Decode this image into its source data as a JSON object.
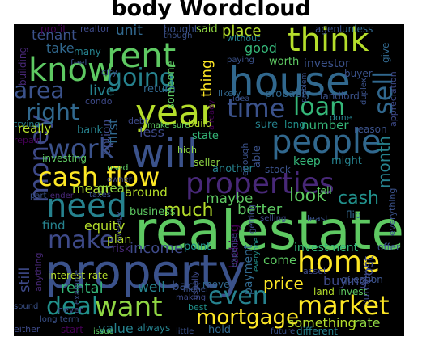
{
  "title": "body Wordcloud",
  "palette": {
    "background": "#000000",
    "viridis": [
      "#440154",
      "#3b528b",
      "#21918c",
      "#5ec962",
      "#fde725"
    ]
  },
  "words": [
    {
      "text": "realestate",
      "color": "#5ec962"
    },
    {
      "text": "property",
      "color": "#3b528b"
    },
    {
      "text": "house",
      "color": "#31688e"
    },
    {
      "text": "will",
      "color": "#3b528b"
    },
    {
      "text": "year",
      "color": "#b5de2b"
    },
    {
      "text": "people",
      "color": "#31688e"
    },
    {
      "text": "rent",
      "color": "#5ec962"
    },
    {
      "text": "think",
      "color": "#b5de2b"
    },
    {
      "text": "know",
      "color": "#5ec962"
    },
    {
      "text": "need",
      "color": "#26828e"
    },
    {
      "text": "money",
      "color": "#3e4a89"
    },
    {
      "text": "properties",
      "color": "#482878"
    },
    {
      "text": "cash flow",
      "color": "#fde725"
    },
    {
      "text": "home",
      "color": "#fde725"
    },
    {
      "text": "market",
      "color": "#fde725"
    },
    {
      "text": "want",
      "color": "#90d743"
    },
    {
      "text": "work",
      "color": "#3b528b"
    },
    {
      "text": "time",
      "color": "#3b528b"
    },
    {
      "text": "loan",
      "color": "#35b779"
    },
    {
      "text": "sell",
      "color": "#31688e"
    },
    {
      "text": "going",
      "color": "#26828e"
    },
    {
      "text": "area",
      "color": "#3b528b"
    },
    {
      "text": "right",
      "color": "#31688e"
    },
    {
      "text": "make",
      "color": "#3e4a89"
    },
    {
      "text": "deal",
      "color": "#21918c"
    },
    {
      "text": "even",
      "color": "#26828e"
    },
    {
      "text": "mortgage",
      "color": "#fde725"
    },
    {
      "text": "look",
      "color": "#5ec962"
    },
    {
      "text": "cash",
      "color": "#21918c"
    },
    {
      "text": "tenant",
      "color": "#3b528b"
    },
    {
      "text": "take",
      "color": "#31688e"
    },
    {
      "text": "unit",
      "color": "#31688e"
    },
    {
      "text": "good",
      "color": "#35b779"
    },
    {
      "text": "place",
      "color": "#b5de2b"
    },
    {
      "text": "said",
      "color": "#90d743"
    },
    {
      "text": "bought",
      "color": "#3b528b"
    },
    {
      "text": "investor",
      "color": "#3b528b"
    },
    {
      "text": "thing",
      "color": "#fde725"
    },
    {
      "text": "live",
      "color": "#26828e"
    },
    {
      "text": "much",
      "color": "#b5de2b"
    },
    {
      "text": "rental",
      "color": "#35b779"
    },
    {
      "text": "well",
      "color": "#26828e"
    },
    {
      "text": "still",
      "color": "#3e4a89"
    },
    {
      "text": "back",
      "color": "#3b528b"
    },
    {
      "text": "price",
      "color": "#fde725"
    },
    {
      "text": "payment",
      "color": "#31688e"
    },
    {
      "text": "buying",
      "color": "#3e4a89"
    },
    {
      "text": "investment",
      "color": "#35b779"
    },
    {
      "text": "something",
      "color": "#b5de2b"
    },
    {
      "text": "rate",
      "color": "#90d743"
    },
    {
      "text": "value",
      "color": "#26828e"
    },
    {
      "text": "month",
      "color": "#26828e"
    },
    {
      "text": "cost",
      "color": "#3e4a89"
    },
    {
      "text": "income",
      "color": "#3e4a89"
    },
    {
      "text": "better",
      "color": "#5ec962"
    },
    {
      "text": "maybe",
      "color": "#5ec962"
    },
    {
      "text": "around",
      "color": "#b5de2b"
    },
    {
      "text": "business",
      "color": "#5ec962"
    },
    {
      "text": "equity",
      "color": "#b5de2b"
    },
    {
      "text": "find",
      "color": "#26828e"
    },
    {
      "text": "mean",
      "color": "#b5de2b"
    },
    {
      "text": "great",
      "color": "#90d743"
    },
    {
      "text": "really",
      "color": "#b5de2b"
    },
    {
      "text": "bank",
      "color": "#26828e"
    },
    {
      "text": "less",
      "color": "#3e4a89"
    },
    {
      "text": "first",
      "color": "#31688e"
    },
    {
      "text": "probably",
      "color": "#31688e"
    },
    {
      "text": "landlord",
      "color": "#3b528b"
    },
    {
      "text": "worth",
      "color": "#5ec962"
    },
    {
      "text": "keep",
      "color": "#35b779"
    },
    {
      "text": "number",
      "color": "#35b779"
    },
    {
      "text": "sure",
      "color": "#26828e"
    },
    {
      "text": "long",
      "color": "#21918c"
    },
    {
      "text": "able",
      "color": "#3b528b"
    },
    {
      "text": "might",
      "color": "#26828e"
    },
    {
      "text": "looking",
      "color": "#440154"
    },
    {
      "text": "move",
      "color": "#31688e"
    },
    {
      "text": "plan",
      "color": "#b5de2b"
    },
    {
      "text": "risk",
      "color": "#482878"
    },
    {
      "text": "point",
      "color": "#21918c"
    },
    {
      "text": "return",
      "color": "#31688e"
    },
    {
      "text": "option",
      "color": "#3e4a89"
    },
    {
      "text": "always",
      "color": "#26828e"
    },
    {
      "text": "hold",
      "color": "#31688e"
    },
    {
      "text": "best",
      "color": "#21918c"
    },
    {
      "text": "come",
      "color": "#5ec962"
    },
    {
      "text": "selling",
      "color": "#3e4a89"
    },
    {
      "text": "interest rate",
      "color": "#b5de2b"
    },
    {
      "text": "buyer",
      "color": "#3b528b"
    },
    {
      "text": "give",
      "color": "#31688e"
    },
    {
      "text": "unless",
      "color": "#31688e"
    },
    {
      "text": "agent",
      "color": "#3b528b"
    },
    {
      "text": "profit",
      "color": "#440154"
    },
    {
      "text": "realtor",
      "color": "#3e4a89"
    },
    {
      "text": "building",
      "color": "#482878"
    },
    {
      "text": "many",
      "color": "#26828e"
    },
    {
      "text": "city",
      "color": "#3b528b"
    },
    {
      "text": "feel",
      "color": "#3b528b"
    },
    {
      "text": "someone",
      "color": "#5ec962"
    },
    {
      "text": "condo",
      "color": "#3e4a89"
    },
    {
      "text": "trying",
      "color": "#26828e"
    },
    {
      "text": "repair",
      "color": "#440154"
    },
    {
      "text": "investing",
      "color": "#5ec962"
    },
    {
      "text": "used",
      "color": "#5ec962"
    },
    {
      "text": "part",
      "color": "#3b528b"
    },
    {
      "text": "lender",
      "color": "#482878"
    },
    {
      "text": "taxes",
      "color": "#3b528b"
    },
    {
      "text": "owner",
      "color": "#3e4a89"
    },
    {
      "text": "debt",
      "color": "#3e4a89"
    },
    {
      "text": "make sure",
      "color": "#5ec962"
    },
    {
      "text": "build",
      "color": "#b5de2b"
    },
    {
      "text": "high",
      "color": "#90d743"
    },
    {
      "text": "seller",
      "color": "#90d743"
    },
    {
      "text": "another",
      "color": "#26828e"
    },
    {
      "text": "stock",
      "color": "#3b528b"
    },
    {
      "text": "tell",
      "color": "#5ec962"
    },
    {
      "text": "least",
      "color": "#3b528b"
    },
    {
      "text": "flip",
      "color": "#31688e"
    },
    {
      "text": "done",
      "color": "#26828e"
    },
    {
      "text": "reason",
      "color": "#3b528b"
    },
    {
      "text": "idea",
      "color": "#3b528b"
    },
    {
      "text": "likely",
      "color": "#31688e"
    },
    {
      "text": "paying",
      "color": "#3b528b"
    },
    {
      "text": "though",
      "color": "#3b528b"
    },
    {
      "text": "without",
      "color": "#26828e"
    },
    {
      "text": "duplex",
      "color": "#3b528b"
    },
    {
      "text": "appreciation",
      "color": "#3e4a89"
    },
    {
      "text": "either",
      "color": "#3e4a89"
    },
    {
      "text": "issue",
      "color": "#5ec962"
    },
    {
      "text": "start",
      "color": "#440154"
    },
    {
      "text": "little",
      "color": "#3b528b"
    },
    {
      "text": "future",
      "color": "#3b528b"
    },
    {
      "text": "different",
      "color": "#26828e"
    },
    {
      "text": "land",
      "color": "#b5de2b"
    },
    {
      "text": "invest",
      "color": "#5ec962"
    },
    {
      "text": "question",
      "color": "#3b528b"
    },
    {
      "text": "offer",
      "color": "#3b528b"
    },
    {
      "text": "purchase",
      "color": "#3e4a89"
    },
    {
      "text": "everything",
      "color": "#3b528b"
    },
    {
      "text": "asset",
      "color": "#3e4a89"
    },
    {
      "text": "making",
      "color": "#3e4a89"
    },
    {
      "text": "higher",
      "color": "#3b528b"
    },
    {
      "text": "usually",
      "color": "#3e4a89"
    },
    {
      "text": "expense",
      "color": "#3e4a89"
    },
    {
      "text": "anything",
      "color": "#482878"
    },
    {
      "text": "example",
      "color": "#3b528b"
    },
    {
      "text": "never",
      "color": "#3b528b"
    },
    {
      "text": "long term",
      "color": "#3b528b"
    },
    {
      "text": "leverage",
      "color": "#3e4a89"
    },
    {
      "text": "state",
      "color": "#35b779"
    },
    {
      "text": "enough",
      "color": "#3b528b"
    },
    {
      "text": "already",
      "color": "#440154"
    },
    {
      "text": "problem",
      "color": "#3b528b"
    },
    {
      "text": "getting",
      "color": "#3e4a89"
    },
    {
      "text": "everyone",
      "color": "#21918c"
    },
    {
      "text": "sound",
      "color": "#3b528b"
    }
  ]
}
